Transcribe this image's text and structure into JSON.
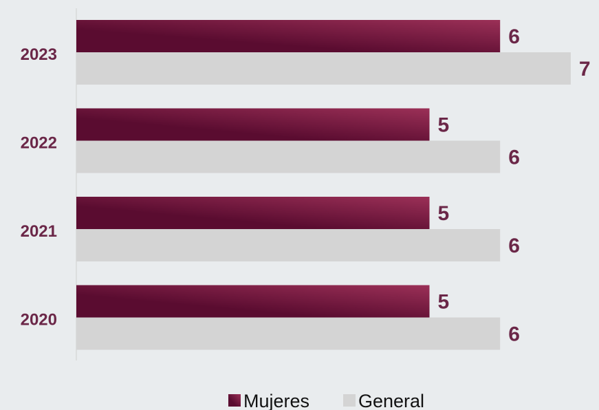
{
  "chart_data": {
    "type": "bar",
    "orientation": "horizontal",
    "categories": [
      "2023",
      "2022",
      "2021",
      "2020"
    ],
    "series": [
      {
        "name": "Mujeres",
        "values": [
          6,
          5,
          5,
          5
        ],
        "color": "#5a0c30",
        "color_end": "#9b3057"
      },
      {
        "name": "General",
        "values": [
          7,
          6,
          6,
          6
        ],
        "color": "#d4d4d4"
      }
    ],
    "xlim": [
      0,
      7
    ],
    "grid": false,
    "legend_position": "bottom",
    "label_color": "#6b2748"
  }
}
